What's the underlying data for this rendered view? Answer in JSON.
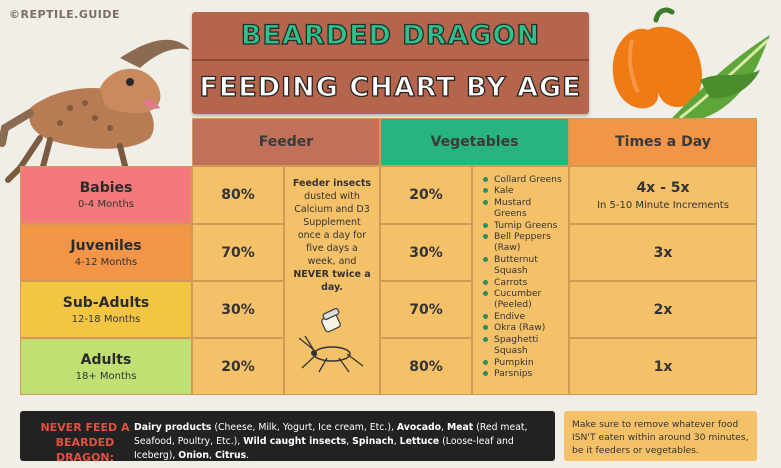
{
  "brand": "©REPTILE.GUIDE",
  "title_line1": "BEARDED DRAGON",
  "title_line2": "FEEDING CHART BY AGE",
  "headers": {
    "feeder": "Feeder",
    "vegetables": "Vegetables",
    "times": "Times a Day"
  },
  "ages": [
    {
      "name": "Babies",
      "range": "0-4 Months",
      "feeder_pct": "80%",
      "veg_pct": "20%",
      "times": "4x - 5x",
      "times_note": "In 5-10 Minute Increments"
    },
    {
      "name": "Juveniles",
      "range": "4-12 Months",
      "feeder_pct": "70%",
      "veg_pct": "30%",
      "times": "3x",
      "times_note": ""
    },
    {
      "name": "Sub-Adults",
      "range": "12-18 Months",
      "feeder_pct": "30%",
      "veg_pct": "70%",
      "times": "2x",
      "times_note": ""
    },
    {
      "name": "Adults",
      "range": "18+ Months",
      "feeder_pct": "20%",
      "veg_pct": "80%",
      "times": "1x",
      "times_note": ""
    }
  ],
  "feeder_note": {
    "part1": "Feeder insects",
    "part2": " dusted with Calcium and D3 Supplement once a day for five days a week, and ",
    "part3": "NEVER twice a day."
  },
  "vegetables": [
    "Collard Greens",
    "Kale",
    "Mustard Greens",
    "Turnip Greens",
    "Bell Peppers (Raw)",
    "Butternut Squash",
    "Carrots",
    "Cucumber (Peeled)",
    "Endive",
    "Okra (Raw)",
    "Spaghetti Squash",
    "Pumpkin",
    "Parsnips"
  ],
  "never": {
    "title": "NEVER FEED A BEARDED DRAGON:",
    "items": [
      {
        "bold": "Dairy products",
        "rest": " (Cheese, Milk, Yogurt, Ice cream, Etc.), "
      },
      {
        "bold": "Avocado",
        "rest": ", "
      },
      {
        "bold": "Meat",
        "rest": " (Red meat, Seafood, Poultry, Etc.), "
      },
      {
        "bold": "Wild caught insects",
        "rest": ", "
      },
      {
        "bold": "Spinach",
        "rest": ", "
      },
      {
        "bold": "Lettuce",
        "rest": " (Loose-leaf and Iceberg), "
      },
      {
        "bold": "Onion",
        "rest": ", "
      },
      {
        "bold": "Citrus",
        "rest": "."
      }
    ]
  },
  "reminder": "Make sure to remove whatever food ISN'T eaten within around 30 minutes, be it feeders or vegetables.",
  "colors": {
    "babies": "#f3797a",
    "juveniles": "#f29547",
    "subadults": "#f4c443",
    "adults": "#c0e074",
    "feeder_header": "#c1715a",
    "veg_header": "#27b47f",
    "times_header": "#f29547",
    "cell": "#f4c168"
  },
  "icons": [
    "bearded-dragon-illustration",
    "bell-pepper-illustration",
    "kale-illustration",
    "cricket-illustration",
    "supplement-shaker-icon"
  ]
}
